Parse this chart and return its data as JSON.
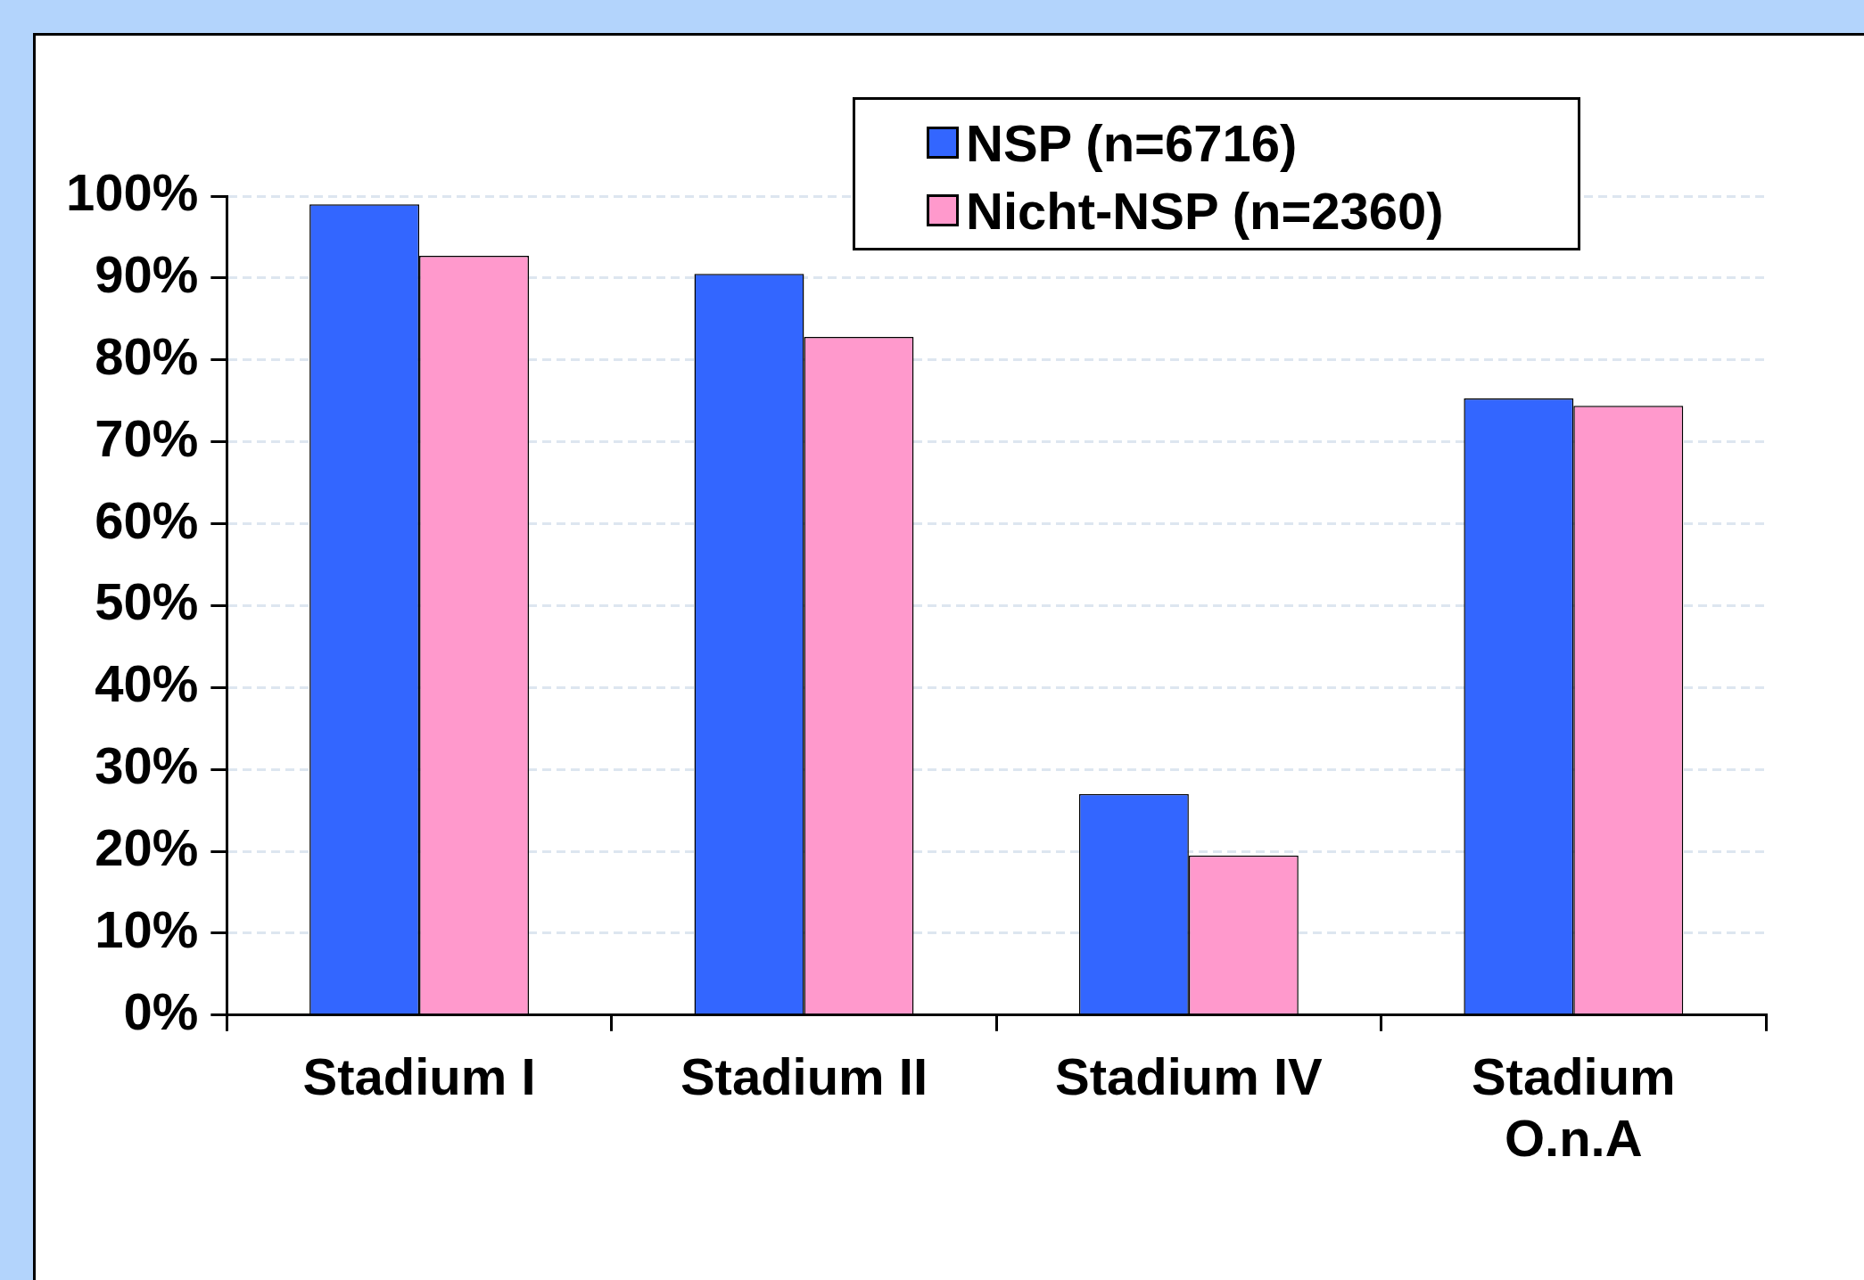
{
  "chart_data": {
    "type": "bar",
    "categories": [
      "Stadium I",
      "Stadium II",
      "Stadium IV",
      "Stadium O.n.A"
    ],
    "series": [
      {
        "name": "NSP (n=6716)",
        "color": "#3366ff",
        "values": [
          99,
          90.5,
          27,
          75.3
        ]
      },
      {
        "name": "Nicht-NSP (n=2360)",
        "color": "#ff99cc",
        "values": [
          92.7,
          82.8,
          19.5,
          74.4
        ]
      }
    ],
    "ylim": [
      0,
      100
    ],
    "yticks": [
      {
        "value": 0,
        "label": "0%"
      },
      {
        "value": 10,
        "label": "10%"
      },
      {
        "value": 20,
        "label": "20%"
      },
      {
        "value": 30,
        "label": "30%"
      },
      {
        "value": 40,
        "label": "40%"
      },
      {
        "value": 50,
        "label": "50%"
      },
      {
        "value": 60,
        "label": "60%"
      },
      {
        "value": 70,
        "label": "70%"
      },
      {
        "value": 80,
        "label": "80%"
      },
      {
        "value": 90,
        "label": "90%"
      },
      {
        "value": 100,
        "label": "100%"
      }
    ],
    "grid": "y",
    "legend": "top"
  }
}
